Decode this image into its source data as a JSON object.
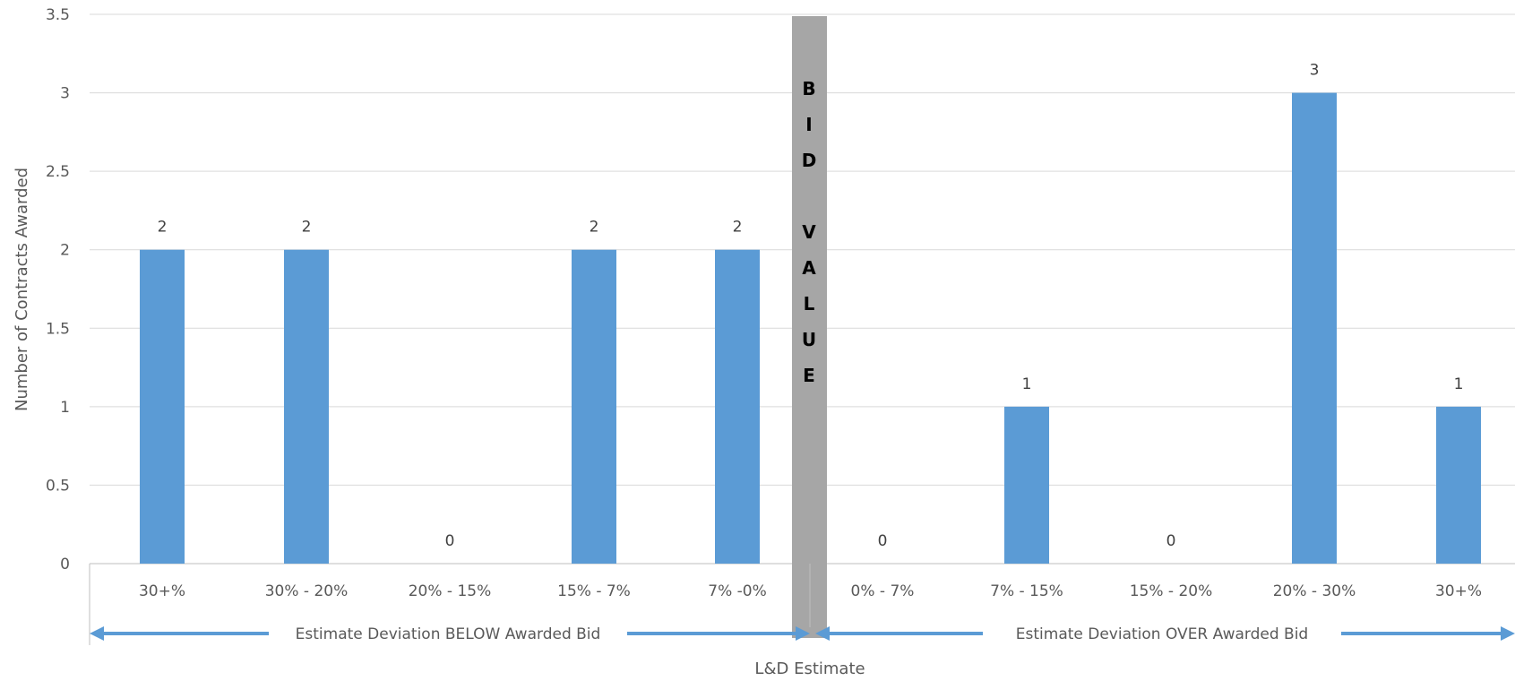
{
  "chart_data": {
    "type": "bar",
    "categories": [
      "30+%",
      "30% - 20%",
      "20% - 15%",
      "15% - 7%",
      "7% -0%",
      "0% - 7%",
      "7% - 15%",
      "15% - 20%",
      "20% - 30%",
      "30+%"
    ],
    "values": [
      2,
      2,
      0,
      2,
      2,
      0,
      1,
      0,
      3,
      1
    ],
    "data_labels": [
      "2",
      "2",
      "0",
      "2",
      "2",
      "0",
      "1",
      "0",
      "3",
      "1"
    ],
    "yticks": [
      "0",
      "0.5",
      "1",
      "1.5",
      "2",
      "2.5",
      "3",
      "3.5"
    ],
    "ylim": [
      0,
      3.5
    ],
    "ylabel": "Number of Contracts Awarded",
    "xlabel": "L&D Estimate",
    "grid": true,
    "bar_color": "#5B9BD5",
    "divider": {
      "label_letters": [
        "B",
        "I",
        "D",
        "",
        "V",
        "A",
        "L",
        "U",
        "E"
      ],
      "color": "#A6A6A6"
    },
    "group_labels": {
      "below": "Estimate Deviation BELOW Awarded Bid",
      "over": "Estimate Deviation OVER Awarded Bid"
    },
    "arrow_color": "#5B9BD5"
  }
}
